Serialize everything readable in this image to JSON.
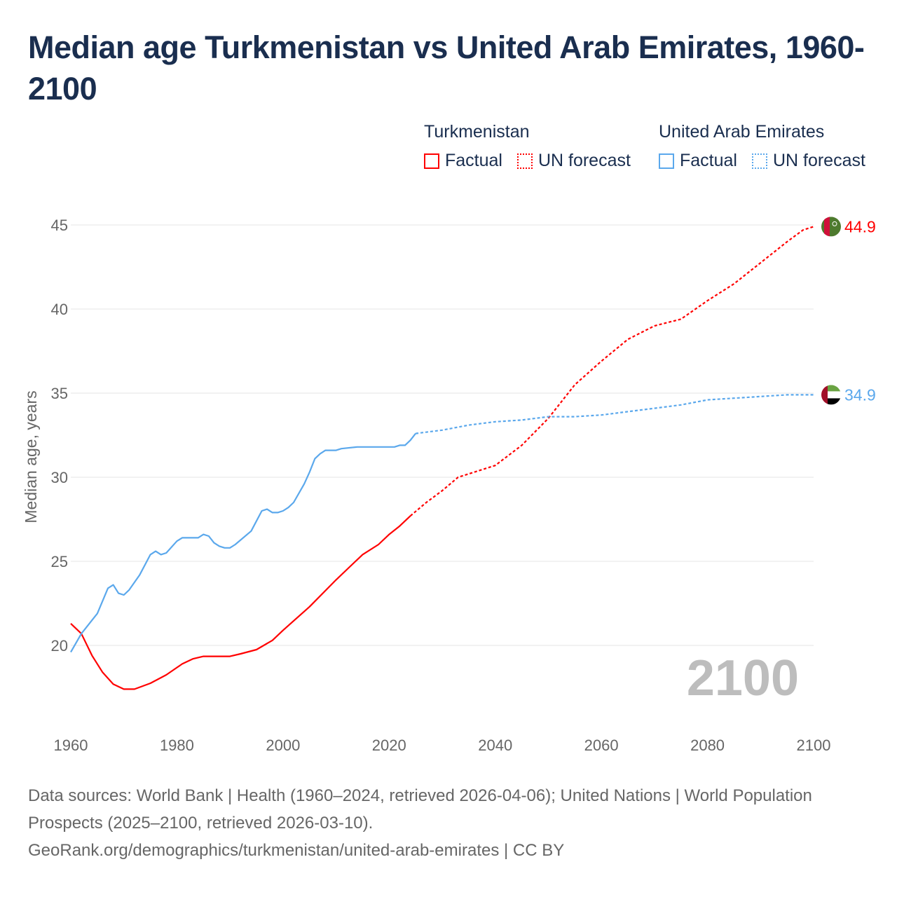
{
  "title": "Median age Turkmenistan vs United Arab Emirates, 1960-2100",
  "legend": {
    "groups": [
      {
        "name": "Turkmenistan",
        "color": "#ff0000",
        "factual": "Factual",
        "forecast": "UN forecast"
      },
      {
        "name": "United Arab Emirates",
        "color": "#5ba8ec",
        "factual": "Factual",
        "forecast": "UN forecast"
      }
    ]
  },
  "footer": {
    "line1": "Data sources: World Bank | Health (1960–2024, retrieved 2026-04-06); United Nations | World Population Prospects (2025–2100, retrieved 2026-03-10).",
    "line2": "GeoRank.org/demographics/turkmenistan/united-arab-emirates | CC BY"
  },
  "chart_data": {
    "type": "line",
    "title": "Median age Turkmenistan vs United Arab Emirates, 1960-2100",
    "xlabel": "",
    "ylabel": "Median age, years",
    "xlim": [
      1960,
      2100
    ],
    "ylim": [
      15.5,
      47
    ],
    "x_ticks": [
      "1960",
      "1980",
      "2000",
      "2020",
      "2040",
      "2060",
      "2080",
      "2100"
    ],
    "y_ticks": [
      "20",
      "25",
      "30",
      "35",
      "40",
      "45"
    ],
    "grid": true,
    "year_label": "2100",
    "series": [
      {
        "name": "Turkmenistan",
        "color": "#ff0000",
        "end_label": "44.9",
        "factual": [
          [
            1960,
            21.3
          ],
          [
            1962,
            20.7
          ],
          [
            1964,
            19.4
          ],
          [
            1966,
            18.4
          ],
          [
            1968,
            17.7
          ],
          [
            1970,
            17.4
          ],
          [
            1972,
            17.4
          ],
          [
            1975,
            17.75
          ],
          [
            1978,
            18.25
          ],
          [
            1981,
            18.9
          ],
          [
            1983,
            19.2
          ],
          [
            1985,
            19.35
          ],
          [
            1990,
            19.35
          ],
          [
            1992,
            19.5
          ],
          [
            1995,
            19.75
          ],
          [
            1998,
            20.3
          ],
          [
            2000,
            20.9
          ],
          [
            2005,
            22.3
          ],
          [
            2010,
            23.9
          ],
          [
            2012,
            24.5
          ],
          [
            2015,
            25.4
          ],
          [
            2018,
            26.0
          ],
          [
            2020,
            26.6
          ],
          [
            2022,
            27.1
          ],
          [
            2024,
            27.7
          ]
        ],
        "forecast": [
          [
            2024,
            27.7
          ],
          [
            2027,
            28.5
          ],
          [
            2030,
            29.2
          ],
          [
            2033,
            30.0
          ],
          [
            2035,
            30.2
          ],
          [
            2040,
            30.7
          ],
          [
            2045,
            31.9
          ],
          [
            2050,
            33.5
          ],
          [
            2055,
            35.5
          ],
          [
            2060,
            36.9
          ],
          [
            2065,
            38.2
          ],
          [
            2070,
            39.0
          ],
          [
            2075,
            39.4
          ],
          [
            2080,
            40.5
          ],
          [
            2085,
            41.5
          ],
          [
            2090,
            42.75
          ],
          [
            2095,
            44.0
          ],
          [
            2098,
            44.7
          ],
          [
            2100,
            44.9
          ]
        ]
      },
      {
        "name": "United Arab Emirates",
        "color": "#5ba8ec",
        "end_label": "34.9",
        "factual": [
          [
            1960,
            19.6
          ],
          [
            1962,
            20.7
          ],
          [
            1965,
            21.9
          ],
          [
            1967,
            23.4
          ],
          [
            1968,
            23.6
          ],
          [
            1969,
            23.1
          ],
          [
            1970,
            23.0
          ],
          [
            1971,
            23.3
          ],
          [
            1973,
            24.2
          ],
          [
            1975,
            25.4
          ],
          [
            1976,
            25.6
          ],
          [
            1977,
            25.4
          ],
          [
            1978,
            25.5
          ],
          [
            1980,
            26.2
          ],
          [
            1981,
            26.4
          ],
          [
            1984,
            26.4
          ],
          [
            1985,
            26.6
          ],
          [
            1986,
            26.5
          ],
          [
            1987,
            26.1
          ],
          [
            1988,
            25.9
          ],
          [
            1989,
            25.8
          ],
          [
            1990,
            25.8
          ],
          [
            1991,
            26.0
          ],
          [
            1994,
            26.8
          ],
          [
            1996,
            28.0
          ],
          [
            1997,
            28.1
          ],
          [
            1998,
            27.9
          ],
          [
            1999,
            27.9
          ],
          [
            2000,
            28.0
          ],
          [
            2001,
            28.2
          ],
          [
            2002,
            28.5
          ],
          [
            2004,
            29.6
          ],
          [
            2005,
            30.3
          ],
          [
            2006,
            31.1
          ],
          [
            2007,
            31.4
          ],
          [
            2008,
            31.6
          ],
          [
            2010,
            31.6
          ],
          [
            2011,
            31.7
          ],
          [
            2014,
            31.8
          ],
          [
            2021,
            31.8
          ],
          [
            2022,
            31.9
          ],
          [
            2023,
            31.9
          ],
          [
            2024,
            32.2
          ],
          [
            2025,
            32.6
          ]
        ],
        "forecast": [
          [
            2025,
            32.6
          ],
          [
            2030,
            32.8
          ],
          [
            2035,
            33.1
          ],
          [
            2040,
            33.3
          ],
          [
            2045,
            33.4
          ],
          [
            2050,
            33.6
          ],
          [
            2055,
            33.6
          ],
          [
            2060,
            33.7
          ],
          [
            2065,
            33.9
          ],
          [
            2070,
            34.1
          ],
          [
            2075,
            34.3
          ],
          [
            2080,
            34.6
          ],
          [
            2085,
            34.7
          ],
          [
            2090,
            34.8
          ],
          [
            2095,
            34.9
          ],
          [
            2100,
            34.9
          ]
        ]
      }
    ]
  }
}
